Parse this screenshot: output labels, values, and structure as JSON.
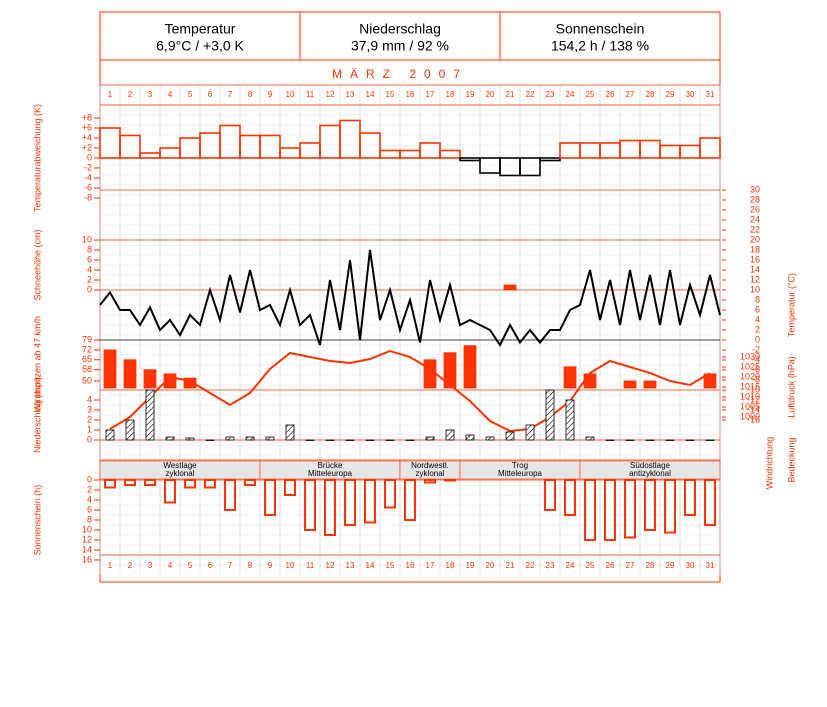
{
  "header": [
    {
      "title": "Temperatur",
      "value": "6,9°C / +3,0 K"
    },
    {
      "title": "Niederschlag",
      "value": "37,9 mm / 92 %"
    },
    {
      "title": "Sonnenschein",
      "value": "154,2 h / 138 %"
    }
  ],
  "month": "MÄRZ  2007",
  "side_labels": [
    "Windrichtung",
    "Bedeckung"
  ],
  "weather_types": [
    {
      "label": [
        "Westlage",
        "zyklonal"
      ],
      "from": 1,
      "to": 8
    },
    {
      "label": [
        "Brücke",
        "Mitteleuropa"
      ],
      "from": 9,
      "to": 15
    },
    {
      "label": [
        "Nordwestl.",
        "zyklonal"
      ],
      "from": 16,
      "to": 18
    },
    {
      "label": [
        "Trog",
        "Mitteleuropa"
      ],
      "from": 19,
      "to": 24
    },
    {
      "label": [
        "Südostlage",
        "antizyklonal"
      ],
      "from": 25,
      "to": 31
    }
  ],
  "chart_data": [
    {
      "type": "step",
      "ylabel": "Temperaturabweichung (K)",
      "color": "#ff3300",
      "negative_color": "#000000",
      "categories": [
        "1",
        "2",
        "3",
        "4",
        "5",
        "6",
        "7",
        "8",
        "9",
        "10",
        "11",
        "12",
        "13",
        "14",
        "15",
        "16",
        "17",
        "18",
        "19",
        "20",
        "21",
        "22",
        "23",
        "24",
        "25",
        "26",
        "27",
        "28",
        "29",
        "30",
        "31"
      ],
      "values": [
        6,
        4.5,
        1,
        2,
        4,
        5,
        6.5,
        4.5,
        4.5,
        2,
        3,
        6.5,
        7.5,
        5,
        1.5,
        1.5,
        3,
        1.5,
        -0.5,
        -3,
        -3.5,
        -3.5,
        -0.5,
        3,
        3,
        3,
        3.5,
        3.5,
        2.5,
        2.5,
        4
      ],
      "ylim": [
        -8,
        8
      ],
      "yticks": [
        {
          "value": 8,
          "label": "+8"
        },
        {
          "value": 6,
          "label": "+6"
        },
        {
          "value": 4,
          "label": "+4"
        },
        {
          "value": 2,
          "label": "+2"
        },
        0,
        -2,
        -4,
        -6,
        -8
      ]
    },
    {
      "type": "line",
      "ylabel": "Temperatur (°C)",
      "color": "#000000",
      "x": [
        0,
        0.5,
        1,
        1.5,
        2,
        2.5,
        3,
        3.5,
        4,
        4.5,
        5,
        5.5,
        6,
        6.5,
        7,
        7.5,
        8,
        8.5,
        9,
        9.5,
        10,
        10.5,
        11,
        11.5,
        12,
        12.5,
        13,
        13.5,
        14,
        14.5,
        15,
        15.5,
        16,
        16.5,
        17,
        17.5,
        18,
        18.5,
        19,
        19.5,
        20,
        20.5,
        21,
        21.5,
        22,
        22.5,
        23,
        23.5,
        24,
        24.5,
        25,
        25.5,
        26,
        26.5,
        27,
        27.5,
        28,
        28.5,
        29,
        29.5,
        30,
        30.5,
        31
      ],
      "values": [
        7,
        9.5,
        6,
        6,
        3,
        6.5,
        2,
        4,
        1,
        5,
        3,
        10,
        4,
        13,
        5.5,
        14,
        6,
        7,
        3,
        10,
        3,
        5,
        -1,
        12,
        2,
        16,
        0,
        18,
        4,
        10,
        2,
        8,
        -0.5,
        12,
        4,
        11,
        3,
        4,
        3,
        2,
        -1,
        3,
        -0.5,
        2,
        -0.5,
        2,
        2,
        6,
        7,
        14,
        4,
        12,
        3,
        14,
        4,
        13,
        3,
        14,
        3,
        11,
        5,
        13,
        5
      ],
      "ylim": [
        -16,
        30
      ],
      "yticks": [
        30,
        28,
        26,
        24,
        22,
        20,
        18,
        16,
        14,
        12,
        10,
        8,
        6,
        4,
        2,
        0,
        -2,
        -4,
        -6,
        -8,
        -10,
        -12,
        -14,
        -16
      ]
    },
    {
      "type": "bar",
      "ylabel": "Schneehöhe (cm)",
      "color": "#ff3300",
      "values": [
        null,
        null,
        null,
        null,
        null,
        null,
        null,
        null,
        null,
        null,
        null,
        null,
        null,
        null,
        null,
        null,
        null,
        null,
        null,
        null,
        1,
        null,
        null,
        null,
        null,
        null,
        null,
        null,
        null,
        null,
        null
      ],
      "ylim": [
        0,
        10
      ],
      "yticks": [
        10,
        8,
        6,
        4,
        2,
        0
      ]
    },
    {
      "type": "bar",
      "ylabel": "Windspitzen ab 47 km/h",
      "color": "#ff3300",
      "values": [
        72,
        65,
        58,
        55,
        52,
        null,
        null,
        null,
        null,
        null,
        null,
        null,
        null,
        null,
        null,
        null,
        65,
        70,
        75,
        null,
        null,
        null,
        null,
        60,
        55,
        null,
        50,
        50,
        null,
        null,
        55
      ],
      "ylim": [
        45,
        79
      ],
      "yticks": [
        79,
        72,
        65,
        58,
        50
      ]
    },
    {
      "type": "line",
      "ylabel": "Luftdruck (hPa)",
      "color": "#ff3300",
      "values": [
        994,
        1000,
        1010,
        1020,
        1018,
        1012,
        1006,
        1012,
        1024,
        1032,
        1030,
        1028,
        1027,
        1029,
        1033,
        1030,
        1024,
        1016,
        1008,
        998,
        993,
        994,
        1000,
        1008,
        1022,
        1028,
        1025,
        1022,
        1018,
        1016,
        1022
      ],
      "ylim": [
        1000,
        1030
      ],
      "yticks": [
        1030,
        1025,
        1020,
        1015,
        1010,
        1005,
        1000
      ]
    },
    {
      "type": "bar",
      "ylabel": "Niederschlag (mm)",
      "color": "#000000",
      "hatched": true,
      "values": [
        1,
        2,
        5,
        0.3,
        0.2,
        0,
        0.3,
        0.3,
        0.3,
        1.5,
        0,
        0,
        0,
        0,
        0,
        0,
        0.3,
        1,
        0.5,
        0.3,
        0.8,
        1.5,
        5,
        4,
        0.3,
        0,
        0,
        0,
        0,
        0,
        0
      ],
      "ylim": [
        0,
        5
      ],
      "yticks": [
        4,
        3,
        2,
        1,
        0
      ]
    },
    {
      "type": "bar",
      "ylabel": "Sonnenschein (h)",
      "color": "#ff3300",
      "inverted": true,
      "values": [
        1.5,
        1,
        1,
        4.5,
        1.5,
        1.5,
        6,
        1,
        7,
        3,
        10,
        11,
        9,
        8.5,
        5.5,
        8,
        0.5,
        0,
        null,
        null,
        null,
        null,
        6,
        7,
        12,
        12,
        11.5,
        10,
        10.5,
        7,
        9
      ],
      "ylim": [
        0,
        16
      ],
      "yticks": [
        0,
        2,
        4,
        6,
        8,
        10,
        12,
        14,
        16
      ]
    }
  ]
}
